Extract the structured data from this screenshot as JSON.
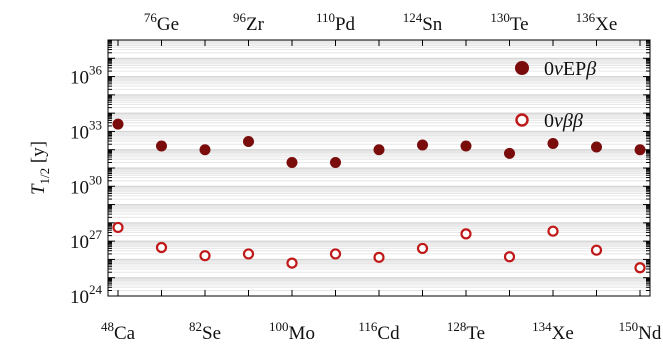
{
  "chart_data": {
    "type": "scatter",
    "categories": [
      "48Ca",
      "76Ge",
      "82Se",
      "96Zr",
      "100Mo",
      "110Pd",
      "116Cd",
      "124Sn",
      "128Te",
      "130Te",
      "134Xe",
      "136Xe",
      "150Nd"
    ],
    "bottom_ticks": [
      {
        "index": 0,
        "mass": "48",
        "element": "Ca"
      },
      {
        "index": 2,
        "mass": "82",
        "element": "Se"
      },
      {
        "index": 4,
        "mass": "100",
        "element": "Mo"
      },
      {
        "index": 6,
        "mass": "116",
        "element": "Cd"
      },
      {
        "index": 8,
        "mass": "128",
        "element": "Te"
      },
      {
        "index": 10,
        "mass": "134",
        "element": "Xe"
      },
      {
        "index": 12,
        "mass": "150",
        "element": "Nd"
      }
    ],
    "top_ticks": [
      {
        "index": 1,
        "mass": "76",
        "element": "Ge"
      },
      {
        "index": 3,
        "mass": "96",
        "element": "Zr"
      },
      {
        "index": 5,
        "mass": "110",
        "element": "Pd"
      },
      {
        "index": 7,
        "mass": "124",
        "element": "Sn"
      },
      {
        "index": 9,
        "mass": "130",
        "element": "Te"
      },
      {
        "index": 11,
        "mass": "136",
        "element": "Xe"
      }
    ],
    "ylabel": "T1/2 [y]",
    "y_scale": "log",
    "ylim": [
      1e+24,
      1e+38
    ],
    "y_ticks": [
      {
        "value": 1e+24,
        "base": "10",
        "exp": "24"
      },
      {
        "value": 1e+27,
        "base": "10",
        "exp": "27"
      },
      {
        "value": 1e+30,
        "base": "10",
        "exp": "30"
      },
      {
        "value": 1e+33,
        "base": "10",
        "exp": "33"
      },
      {
        "value": 1e+36,
        "base": "10",
        "exp": "36"
      }
    ],
    "grid": true,
    "legend_position": "top-right",
    "series": [
      {
        "name": "0νEPβ",
        "marker": "filled-circle",
        "color": "#7a0c0c",
        "values": [
          2.5e+33,
          1.6e+32,
          1e+32,
          2.8e+32,
          2e+31,
          2e+31,
          1e+32,
          1.8e+32,
          1.6e+32,
          6.3e+31,
          2.2e+32,
          1.4e+32,
          1e+32
        ]
      },
      {
        "name": "0νββ",
        "marker": "open-circle",
        "color": "#c01818",
        "values": [
          5.6e+27,
          4.5e+26,
          1.6e+26,
          2e+26,
          6.3e+25,
          2e+26,
          1.3e+26,
          4e+26,
          2.5e+27,
          1.4e+26,
          3.5e+27,
          3.2e+26,
          3.5e+25
        ]
      }
    ]
  }
}
